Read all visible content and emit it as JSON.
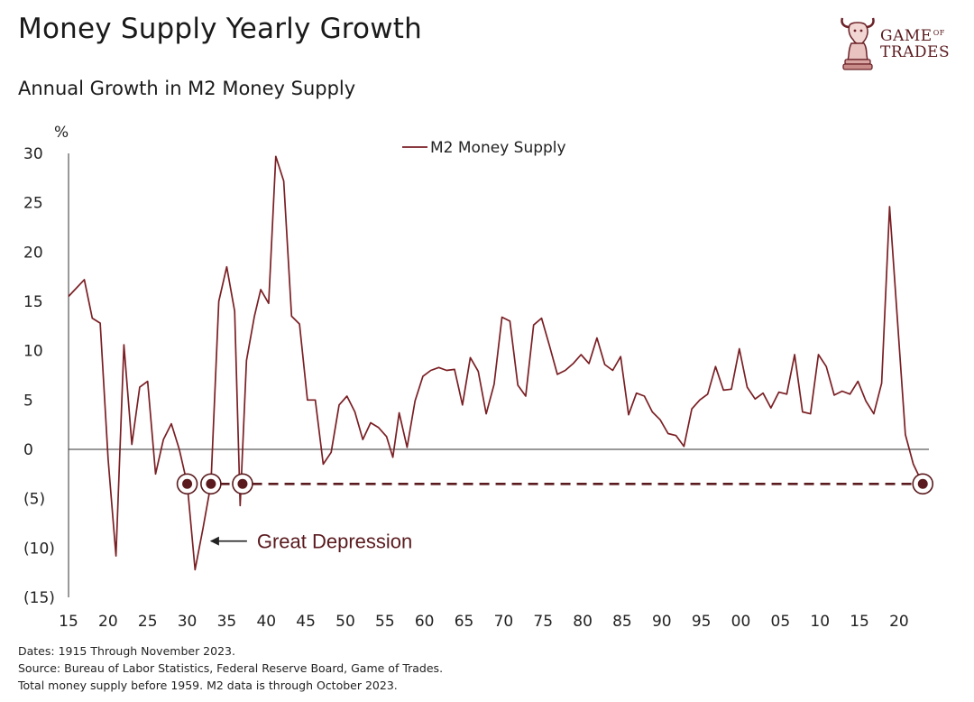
{
  "header": {
    "title": "Money Supply Yearly Growth",
    "subtitle": "Annual Growth in M2 Money Supply"
  },
  "logo": {
    "line1": "GAME",
    "line1_small": "OF",
    "line2": "TRADES"
  },
  "footer": {
    "line1": "Dates: 1915 Through November 2023.",
    "line2": "Source: Bureau of Labor Statistics, Federal Reserve Board, Game of Trades.",
    "line3": "Total money supply before 1959. M2 data is through October 2023."
  },
  "chart_data": {
    "type": "line",
    "ylabel": "%",
    "ylim": [
      -15,
      30
    ],
    "yticks": [
      30,
      25,
      20,
      15,
      10,
      5,
      0,
      -5,
      -10,
      -15
    ],
    "ytick_labels": [
      "30",
      "25",
      "20",
      "15",
      "10",
      "5",
      "0",
      "(5)",
      "(10)",
      "(15)"
    ],
    "xlim": [
      1915,
      2024
    ],
    "xticks": [
      1915,
      1920,
      1925,
      1930,
      1935,
      1940,
      1945,
      1950,
      1955,
      1960,
      1965,
      1970,
      1975,
      1980,
      1985,
      1990,
      1995,
      2000,
      2005,
      2010,
      2015,
      2020
    ],
    "xtick_labels": [
      "15",
      "20",
      "25",
      "30",
      "35",
      "40",
      "45",
      "50",
      "55",
      "60",
      "65",
      "70",
      "75",
      "80",
      "85",
      "90",
      "95",
      "00",
      "05",
      "10",
      "15",
      "20"
    ],
    "legend": "top-center",
    "colors": {
      "line": "#7a1f24",
      "marker": "#5a1a1e",
      "axis": "#333333"
    },
    "series": [
      {
        "name": "M2 Money Supply",
        "points": [
          [
            1915,
            15.5
          ],
          [
            1917,
            17.2
          ],
          [
            1918,
            13.3
          ],
          [
            1919,
            12.8
          ],
          [
            1920,
            -1.0
          ],
          [
            1921,
            -10.8
          ],
          [
            1922,
            10.6
          ],
          [
            1923,
            0.5
          ],
          [
            1924,
            6.3
          ],
          [
            1925,
            6.9
          ],
          [
            1926,
            -2.5
          ],
          [
            1927,
            1.0
          ],
          [
            1928,
            2.6
          ],
          [
            1929,
            0.0
          ],
          [
            1930,
            -3.5
          ],
          [
            1931,
            -12.2
          ],
          [
            1932,
            -8.0
          ],
          [
            1933,
            -3.5
          ],
          [
            1934,
            15.0
          ],
          [
            1935,
            18.5
          ],
          [
            1936,
            14.0
          ],
          [
            1936.7,
            -5.7
          ],
          [
            1937.5,
            9.0
          ],
          [
            1938.5,
            13.5
          ],
          [
            1939.3,
            16.2
          ],
          [
            1940.3,
            14.8
          ],
          [
            1941.2,
            29.7
          ],
          [
            1942.2,
            27.2
          ],
          [
            1943.2,
            13.5
          ],
          [
            1944.2,
            12.7
          ],
          [
            1945.2,
            5.0
          ],
          [
            1946.2,
            5.0
          ],
          [
            1947.2,
            -1.5
          ],
          [
            1948.2,
            -0.3
          ],
          [
            1949.2,
            4.5
          ],
          [
            1950.2,
            5.4
          ],
          [
            1951.2,
            3.8
          ],
          [
            1952.2,
            1.0
          ],
          [
            1953.2,
            2.7
          ],
          [
            1954.2,
            2.2
          ],
          [
            1955.2,
            1.3
          ],
          [
            1956,
            -0.8
          ],
          [
            1956.8,
            3.7
          ],
          [
            1957.8,
            0.2
          ],
          [
            1958.8,
            4.9
          ],
          [
            1959.8,
            7.4
          ],
          [
            1960.8,
            8.0
          ],
          [
            1961.8,
            8.3
          ],
          [
            1962.8,
            8.0
          ],
          [
            1963.8,
            8.1
          ],
          [
            1964.8,
            4.5
          ],
          [
            1965.8,
            9.3
          ],
          [
            1966.8,
            7.9
          ],
          [
            1967.8,
            3.6
          ],
          [
            1968.8,
            6.6
          ],
          [
            1969.8,
            13.4
          ],
          [
            1970.8,
            13.0
          ],
          [
            1971.8,
            6.5
          ],
          [
            1972.8,
            5.4
          ],
          [
            1973.8,
            12.6
          ],
          [
            1974.8,
            13.3
          ],
          [
            1975.8,
            10.5
          ],
          [
            1976.8,
            7.6
          ],
          [
            1977.8,
            8.0
          ],
          [
            1978.8,
            8.7
          ],
          [
            1979.8,
            9.6
          ],
          [
            1980.8,
            8.7
          ],
          [
            1981.8,
            11.3
          ],
          [
            1982.8,
            8.6
          ],
          [
            1983.8,
            8.0
          ],
          [
            1984.8,
            9.4
          ],
          [
            1985.8,
            3.5
          ],
          [
            1986.8,
            5.7
          ],
          [
            1987.8,
            5.4
          ],
          [
            1988.8,
            3.8
          ],
          [
            1989.8,
            3.0
          ],
          [
            1990.8,
            1.6
          ],
          [
            1991.8,
            1.4
          ],
          [
            1992.8,
            0.3
          ],
          [
            1993.8,
            4.1
          ],
          [
            1994.8,
            5.0
          ],
          [
            1995.8,
            5.6
          ],
          [
            1996.8,
            8.4
          ],
          [
            1997.8,
            6.0
          ],
          [
            1998.8,
            6.1
          ],
          [
            1999.8,
            10.2
          ],
          [
            2000.8,
            6.3
          ],
          [
            2001.8,
            5.1
          ],
          [
            2002.8,
            5.7
          ],
          [
            2003.8,
            4.2
          ],
          [
            2004.8,
            5.8
          ],
          [
            2005.8,
            5.6
          ],
          [
            2006.8,
            9.6
          ],
          [
            2007.8,
            3.8
          ],
          [
            2008.8,
            3.6
          ],
          [
            2009.8,
            9.6
          ],
          [
            2010.8,
            8.4
          ],
          [
            2011.8,
            5.5
          ],
          [
            2012.8,
            5.9
          ],
          [
            2013.8,
            5.6
          ],
          [
            2014.8,
            6.9
          ],
          [
            2015.8,
            4.9
          ],
          [
            2016.8,
            3.6
          ],
          [
            2017.8,
            6.7
          ],
          [
            2018.8,
            24.6
          ],
          [
            2019.8,
            13.0
          ],
          [
            2020.8,
            1.5
          ],
          [
            2021.8,
            -1.5
          ],
          [
            2023,
            -3.5
          ]
        ]
      }
    ],
    "reference_line": {
      "y": -3.5,
      "style": "dashed",
      "from_x": 1930,
      "to_x": 2023
    },
    "highlight_markers": [
      {
        "x": 1930,
        "y": -3.5
      },
      {
        "x": 1933,
        "y": -3.5
      },
      {
        "x": 1937,
        "y": -3.5
      },
      {
        "x": 2023,
        "y": -3.5
      }
    ],
    "annotations": [
      {
        "text": "Great Depression",
        "arrow_to_x": 1933,
        "y": -9.3
      }
    ]
  }
}
